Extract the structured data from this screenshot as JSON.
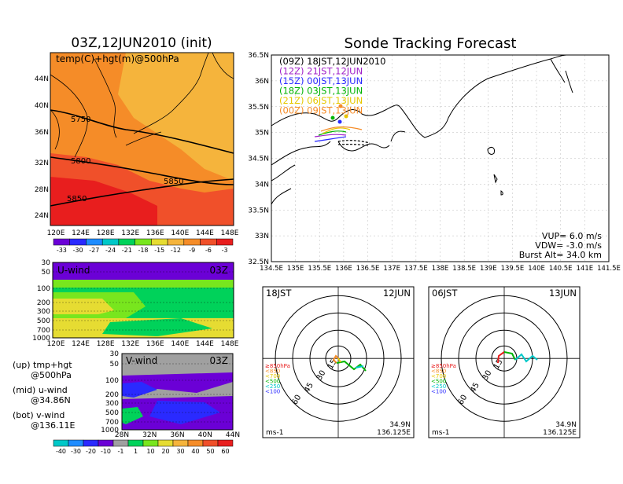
{
  "left_title": "03Z,12JUN2010 (init)",
  "main_title": "Sonde Tracking Forecast",
  "colors": {
    "temp_scale": [
      "#6b00d6",
      "#2a2aff",
      "#1e8cff",
      "#00c8c8",
      "#00d25a",
      "#78e61e",
      "#e6dc32",
      "#f5b43c",
      "#f58c28",
      "#f0502a",
      "#e81e1e"
    ],
    "wind_scale": [
      "#00c8c8",
      "#1e8cff",
      "#2a2aff",
      "#6b00d6",
      "#a0a0a0",
      "#00d25a",
      "#78e61e",
      "#e6dc32",
      "#f5b43c",
      "#f58c28",
      "#f0502a",
      "#e81e1e"
    ],
    "map_bg": "#f58c28",
    "map_warm": "#f0502a",
    "map_cool": "#f5b43c"
  },
  "temp_panel": {
    "label": "temp(C)+hgt(m)@500hPa",
    "lat_ticks": [
      "44N",
      "40N",
      "36N",
      "32N",
      "28N",
      "24N"
    ],
    "lon_ticks": [
      "120E",
      "124E",
      "128E",
      "132E",
      "136E",
      "140E",
      "144E",
      "148E"
    ],
    "contours": [
      "5750",
      "5800",
      "5850",
      "5850"
    ],
    "colorbar_labels": [
      "-33",
      "-30",
      "-27",
      "-24",
      "-21",
      "-18",
      "-15",
      "-12",
      "-9",
      "-6",
      "-3"
    ]
  },
  "u_panel": {
    "label": "U-wind",
    "time": "03Z",
    "p_ticks": [
      "30",
      "50",
      "100",
      "200",
      "300",
      "500",
      "700",
      "1000"
    ],
    "lon_ticks": [
      "120E",
      "124E",
      "128E",
      "132E",
      "136E",
      "140E",
      "144E",
      "148E"
    ]
  },
  "v_panel": {
    "label": "V-wind",
    "time": "03Z",
    "p_ticks": [
      "30",
      "50",
      "100",
      "200",
      "300",
      "500",
      "700",
      "1000"
    ],
    "lat_ticks": [
      "28N",
      "32N",
      "36N",
      "40N",
      "44N"
    ]
  },
  "legend": {
    "up": [
      "(up) tmp+hgt",
      "@500hPa"
    ],
    "mid": [
      "(mid) u-wind",
      "@34.86N"
    ],
    "bot": [
      "(bot) v-wind",
      "@136.11E"
    ]
  },
  "wind_colorbar_labels": [
    "-40",
    "-30",
    "-20",
    "-10",
    "-1",
    "1",
    "10",
    "20",
    "30",
    "40",
    "50",
    "60"
  ],
  "track_panel": {
    "legend": [
      {
        "text": "(09Z)  18JST,12JUN2010",
        "color": "#000000"
      },
      {
        "text": "(12Z)  21JST,12JUN",
        "color": "#a020c8"
      },
      {
        "text": "(15Z)  00JST,13JUN",
        "color": "#2a2aff"
      },
      {
        "text": "(18Z)  03JST,13JUN",
        "color": "#00b400"
      },
      {
        "text": "(21Z)  06JST,13JUN",
        "color": "#e6c800"
      },
      {
        "text": "(00Z)  09JST,13JUN",
        "color": "#f58c28"
      }
    ],
    "lat_ticks": [
      "36.5N",
      "36N",
      "35.5N",
      "35N",
      "34.5N",
      "34N",
      "33.5N",
      "33N",
      "32.5N"
    ],
    "lon_ticks": [
      "134.5E",
      "135E",
      "135.5E",
      "136E",
      "136.5E",
      "137E",
      "137.5E",
      "138E",
      "138.5E",
      "139E",
      "139.5E",
      "140E",
      "140.5E",
      "141E",
      "141.5E"
    ],
    "params": [
      "VUP=  6.0  m/s",
      "VDW= -3.0  m/s",
      "Burst Alt=  34.0  km"
    ]
  },
  "hodo_left": {
    "time": "18JST",
    "date": "12JUN",
    "rings": [
      "15",
      "30",
      "45",
      "60"
    ],
    "levels": [
      {
        "text": "≥850hPa",
        "color": "#e81e1e"
      },
      {
        "text": "<850",
        "color": "#f58c28"
      },
      {
        "text": "<700",
        "color": "#e6c800"
      },
      {
        "text": "<500",
        "color": "#00b400"
      },
      {
        "text": "<250",
        "color": "#00c8c8"
      },
      {
        "text": "<100",
        "color": "#2a2aff"
      }
    ],
    "unit": "ms-1",
    "lat": "34.9N",
    "lon": "136.125E"
  },
  "hodo_right": {
    "time": "06JST",
    "date": "13JUN",
    "rings": [
      "15",
      "30",
      "45",
      "60"
    ],
    "levels": [
      {
        "text": "≥850hPa",
        "color": "#e81e1e"
      },
      {
        "text": "<850",
        "color": "#f58c28"
      },
      {
        "text": "<700",
        "color": "#e6c800"
      },
      {
        "text": "<500",
        "color": "#00b400"
      },
      {
        "text": "<250",
        "color": "#00c8c8"
      },
      {
        "text": "<100",
        "color": "#2a2aff"
      }
    ],
    "unit": "ms-1",
    "lat": "34.9N",
    "lon": "136.125E"
  },
  "chart_data": [
    {
      "type": "heatmap",
      "title": "03Z,12JUN2010 (init)",
      "xlabel": "",
      "ylabel": "",
      "xlim": [
        "120E",
        "148E"
      ],
      "ylim": [
        "22N",
        "46N"
      ],
      "colorbar": [
        -33,
        -30,
        -27,
        -24,
        -21,
        -18,
        -15,
        -12,
        -9,
        -6,
        -3
      ]
    },
    {
      "type": "heatmap",
      "title": "U-wind",
      "xlim": [
        "120E",
        "148E"
      ],
      "ylim": [
        1000,
        30
      ]
    },
    {
      "type": "heatmap",
      "title": "V-wind",
      "xlim": [
        "28N",
        "44N"
      ],
      "ylim": [
        1000,
        30
      ],
      "colorbar": [
        -40,
        -30,
        -20,
        -10,
        -1,
        1,
        10,
        20,
        30,
        40,
        50,
        60
      ]
    },
    {
      "type": "line",
      "title": "Sonde Tracking Forecast",
      "xlim": [
        134.5,
        141.5
      ],
      "ylim": [
        32.5,
        36.5
      ]
    }
  ]
}
